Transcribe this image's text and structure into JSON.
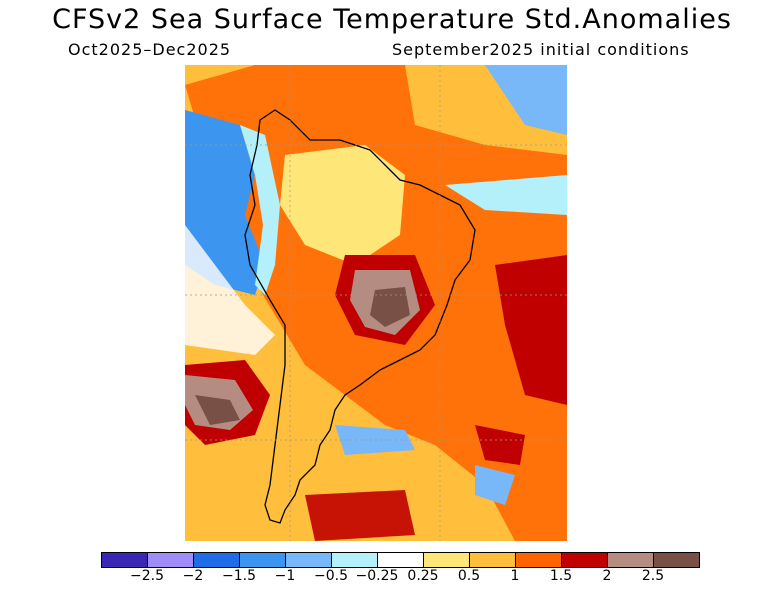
{
  "title": "CFSv2 Sea Surface Temperature Std.Anomalies",
  "period": "Oct2025–Dec2025",
  "initial_conditions": "September2025 initial conditions",
  "colorbar": {
    "colors": [
      "#3a28b4",
      "#a08cf8",
      "#1e6ce8",
      "#3c96f0",
      "#78b8f8",
      "#b4f0fa",
      "#ffffff",
      "#ffe678",
      "#ffbe3c",
      "#ff6400",
      "#c00000",
      "#b48c82",
      "#785046"
    ],
    "labels": [
      "−2.5",
      "−2",
      "−1.5",
      "−1",
      "−0.5",
      "−0.25",
      "0.25",
      "0.5",
      "1",
      "1.5",
      "2",
      "2.5"
    ]
  }
}
